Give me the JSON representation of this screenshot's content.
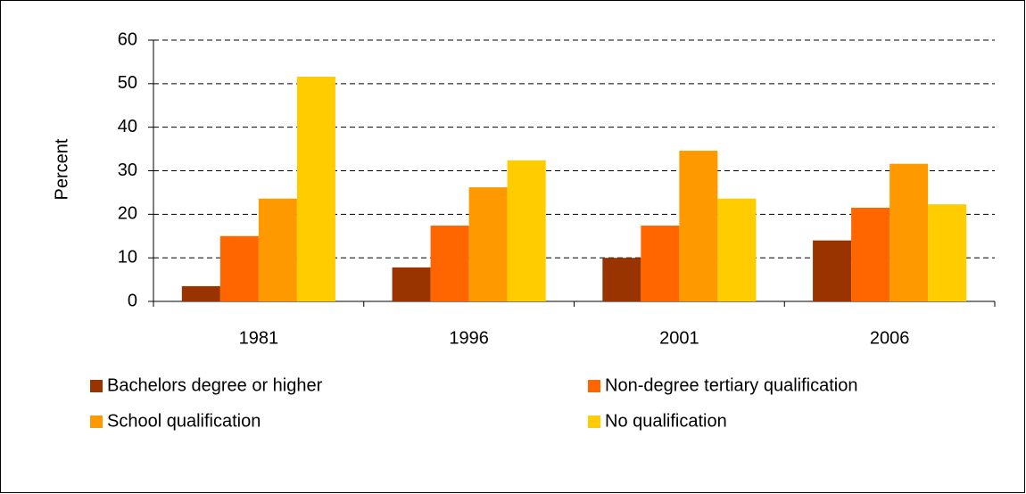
{
  "chart_data": {
    "type": "bar",
    "y_label": "Percent",
    "categories": [
      "1981",
      "1996",
      "2001",
      "2006"
    ],
    "series": [
      {
        "name": "Bachelors degree or higher",
        "color": "#993300",
        "values": [
          3.5,
          7.8,
          10,
          14
        ]
      },
      {
        "name": "Non-degree tertiary qualification",
        "color": "#ff6600",
        "values": [
          15,
          17.4,
          17.4,
          21.5
        ]
      },
      {
        "name": "School qualification",
        "color": "#ff9900",
        "values": [
          23.6,
          26.2,
          34.6,
          31.6
        ]
      },
      {
        "name": "No qualification",
        "color": "#ffcc00",
        "values": [
          51.6,
          32.4,
          23.6,
          22.3
        ]
      }
    ],
    "ylim": [
      0,
      60
    ],
    "yticks": [
      0,
      10,
      20,
      30,
      40,
      50,
      60
    ],
    "grid": true,
    "legend": "bottom"
  }
}
